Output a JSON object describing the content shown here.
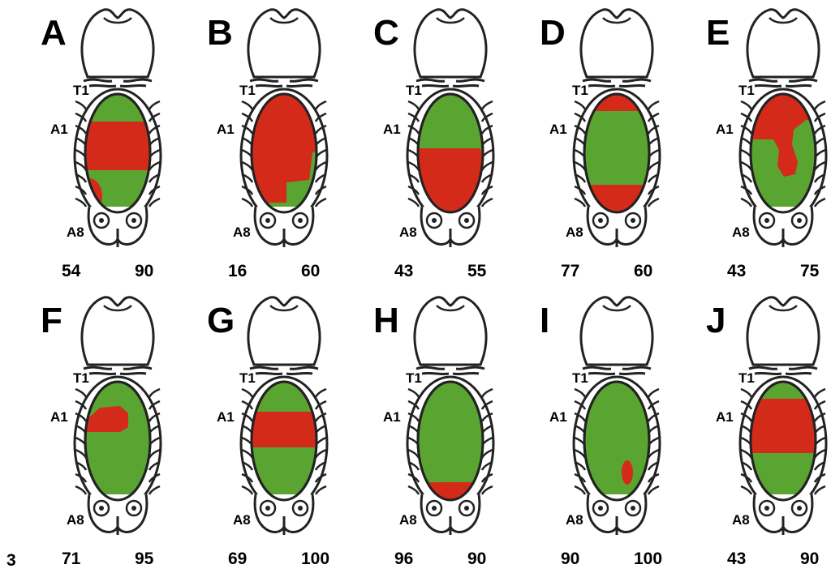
{
  "figure_number": "3",
  "panels": [
    {
      "letter": "A",
      "t1": "T1",
      "a1": "A1",
      "a8": "A8",
      "numbers": [
        54,
        90
      ]
    },
    {
      "letter": "B",
      "t1": "T1",
      "a1": "A1",
      "a8": "A8",
      "numbers": [
        16,
        60
      ]
    },
    {
      "letter": "C",
      "t1": "T1",
      "a1": "A1",
      "a8": "A8",
      "numbers": [
        43,
        55
      ]
    },
    {
      "letter": "D",
      "t1": "T1",
      "a1": "A1",
      "a8": "A8",
      "numbers": [
        77,
        60
      ]
    },
    {
      "letter": "E",
      "t1": "T1",
      "a1": "A1",
      "a8": "A8",
      "numbers": [
        43,
        75
      ]
    },
    {
      "letter": "F",
      "t1": "T1",
      "a1": "A1",
      "a8": "A8",
      "numbers": [
        71,
        95
      ]
    },
    {
      "letter": "G",
      "t1": "T1",
      "a1": "A1",
      "a8": "A8",
      "numbers": [
        69,
        100
      ]
    },
    {
      "letter": "H",
      "t1": "T1",
      "a1": "A1",
      "a8": "A8",
      "numbers": [
        96,
        90
      ]
    },
    {
      "letter": "I",
      "t1": "T1",
      "a1": "A1",
      "a8": "A8",
      "numbers": [
        90,
        100
      ]
    },
    {
      "letter": "J",
      "t1": "T1",
      "a1": "A1",
      "a8": "A8",
      "numbers": [
        43,
        90
      ]
    }
  ]
}
